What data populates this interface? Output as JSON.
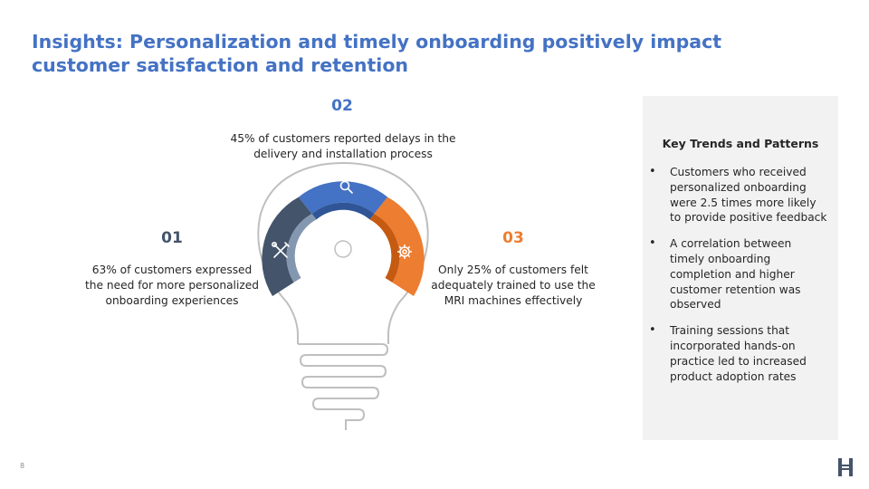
{
  "title": "Insights: Personalization and timely onboarding positively impact customer satisfaction and retention",
  "steps": [
    {
      "number": "01",
      "text": "63% of customers expressed the need for more personalized onboarding experiences",
      "icon": "tools-icon",
      "color": "#44546a"
    },
    {
      "number": "02",
      "text": "45% of customers reported delays in the delivery and installation process",
      "icon": "magnifier-icon",
      "color": "#4472c4"
    },
    {
      "number": "03",
      "text": "Only 25% of customers felt adequately trained to use the MRI machines effectively",
      "icon": "gear-icon",
      "color": "#ed7d31"
    }
  ],
  "panel": {
    "title": "Key Trends and Patterns",
    "items": [
      "Customers who received personalized onboarding were 2.5 times more likely to provide positive feedback",
      "A correlation between timely onboarding completion and higher customer retention was observed",
      "Training sessions that incorporated hands-on practice led to increased product adoption rates"
    ]
  },
  "page_number": "8",
  "colors": {
    "title": "#4472c4",
    "panel_bg": "#f2f2f2",
    "bulb_outline": "#bfbfbf"
  }
}
